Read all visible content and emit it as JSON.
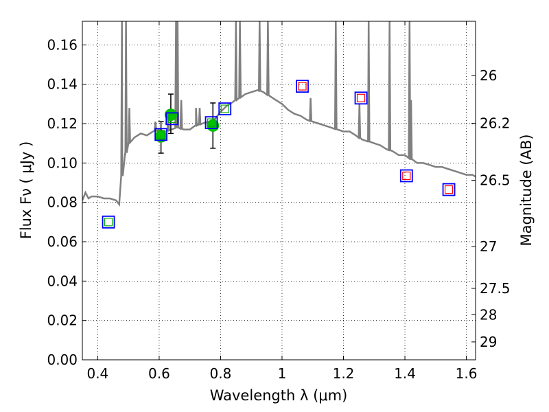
{
  "chart_data": {
    "type": "scatter",
    "xlabel": "Wavelength  λ (μm)",
    "ylabel": "Flux  Fν  ( μJy )",
    "y2label": "Magnitude (AB)",
    "xlim": [
      0.35,
      1.63
    ],
    "ylim": [
      0.0,
      0.172
    ],
    "x_ticks": [
      0.4,
      0.6,
      0.8,
      1.0,
      1.2,
      1.4,
      1.6
    ],
    "x_tick_labels": [
      "0.4",
      "0.6",
      "0.8",
      "1",
      "1.2",
      "1.4",
      "1.6"
    ],
    "y_ticks": [
      0.0,
      0.02,
      0.04,
      0.06,
      0.08,
      0.1,
      0.12,
      0.14,
      0.16
    ],
    "y_tick_labels": [
      "0.00",
      "0.02",
      "0.04",
      "0.06",
      "0.08",
      "0.10",
      "0.12",
      "0.14",
      "0.16"
    ],
    "y2_ticks": [
      {
        "mag": "26",
        "flux": 0.1445
      },
      {
        "mag": "26.2",
        "flux": 0.1202
      },
      {
        "mag": "26.5",
        "flux": 0.0912
      },
      {
        "mag": "27",
        "flux": 0.0575
      },
      {
        "mag": "27.5",
        "flux": 0.0363
      },
      {
        "mag": "28",
        "flux": 0.0229
      },
      {
        "mag": "29",
        "flux": 0.0091
      }
    ],
    "grid": true,
    "colors": {
      "sed": "#808080",
      "observed": "#00c000",
      "errorbar": "#000000",
      "model_outer": "#0000ff",
      "model_inner_green": "#00aa00",
      "model_inner_red": "#ff0000"
    },
    "sed_spectrum": {
      "x": [
        0.35,
        0.36,
        0.37,
        0.38,
        0.4,
        0.42,
        0.44,
        0.46,
        0.47,
        0.48,
        0.49,
        0.5,
        0.52,
        0.54,
        0.56,
        0.58,
        0.6,
        0.62,
        0.64,
        0.66,
        0.68,
        0.7,
        0.72,
        0.74,
        0.76,
        0.78,
        0.8,
        0.82,
        0.84,
        0.86,
        0.88,
        0.9,
        0.92,
        0.94,
        0.96,
        0.98,
        1.0,
        1.02,
        1.04,
        1.06,
        1.08,
        1.1,
        1.12,
        1.14,
        1.16,
        1.18,
        1.2,
        1.22,
        1.24,
        1.26,
        1.28,
        1.3,
        1.32,
        1.34,
        1.36,
        1.38,
        1.4,
        1.42,
        1.44,
        1.46,
        1.48,
        1.5,
        1.52,
        1.54,
        1.56,
        1.58,
        1.6,
        1.62,
        1.63
      ],
      "y": [
        0.081,
        0.085,
        0.082,
        0.083,
        0.083,
        0.082,
        0.082,
        0.081,
        0.079,
        0.095,
        0.104,
        0.11,
        0.113,
        0.115,
        0.114,
        0.116,
        0.117,
        0.116,
        0.117,
        0.118,
        0.117,
        0.117,
        0.119,
        0.12,
        0.121,
        0.122,
        0.126,
        0.129,
        0.131,
        0.133,
        0.135,
        0.136,
        0.137,
        0.136,
        0.134,
        0.132,
        0.13,
        0.127,
        0.125,
        0.124,
        0.122,
        0.121,
        0.12,
        0.119,
        0.118,
        0.117,
        0.116,
        0.116,
        0.114,
        0.112,
        0.111,
        0.11,
        0.109,
        0.107,
        0.106,
        0.104,
        0.104,
        0.102,
        0.1,
        0.1,
        0.099,
        0.098,
        0.098,
        0.097,
        0.096,
        0.095,
        0.094,
        0.094,
        0.093
      ]
    },
    "sed_lines": [
      {
        "x": 0.479,
        "peak": 0.172
      },
      {
        "x": 0.492,
        "peak": 0.172
      },
      {
        "x": 0.503,
        "peak": 0.128
      },
      {
        "x": 0.588,
        "peak": 0.121
      },
      {
        "x": 0.63,
        "peak": 0.127
      },
      {
        "x": 0.655,
        "peak": 0.172
      },
      {
        "x": 0.66,
        "peak": 0.172
      },
      {
        "x": 0.672,
        "peak": 0.132
      },
      {
        "x": 0.72,
        "peak": 0.128
      },
      {
        "x": 0.732,
        "peak": 0.128
      },
      {
        "x": 0.85,
        "peak": 0.172
      },
      {
        "x": 0.863,
        "peak": 0.172
      },
      {
        "x": 0.927,
        "peak": 0.172
      },
      {
        "x": 0.954,
        "peak": 0.172
      },
      {
        "x": 1.093,
        "peak": 0.133
      },
      {
        "x": 1.175,
        "peak": 0.172
      },
      {
        "x": 1.252,
        "peak": 0.13
      },
      {
        "x": 1.282,
        "peak": 0.172
      },
      {
        "x": 1.35,
        "peak": 0.172
      },
      {
        "x": 1.415,
        "peak": 0.172
      },
      {
        "x": 1.42,
        "peak": 0.132
      }
    ],
    "observed_points": [
      {
        "x": 0.606,
        "y": 0.1135,
        "err_low": 0.0085,
        "err_high": 0.0075
      },
      {
        "x": 0.638,
        "y": 0.1245,
        "err_low": 0.0095,
        "err_high": 0.0105
      },
      {
        "x": 0.775,
        "y": 0.119,
        "err_low": 0.0115,
        "err_high": 0.0115
      }
    ],
    "model_points": [
      {
        "x": 0.435,
        "y": 0.07,
        "inner": "green"
      },
      {
        "x": 0.606,
        "y": 0.1145,
        "inner": "green"
      },
      {
        "x": 0.642,
        "y": 0.1225,
        "inner": "green"
      },
      {
        "x": 0.77,
        "y": 0.1205,
        "inner": "green"
      },
      {
        "x": 0.814,
        "y": 0.1275,
        "inner": "green"
      },
      {
        "x": 1.066,
        "y": 0.139,
        "inner": "red"
      },
      {
        "x": 1.257,
        "y": 0.133,
        "inner": "red"
      },
      {
        "x": 1.405,
        "y": 0.0935,
        "inner": "red"
      },
      {
        "x": 1.543,
        "y": 0.0865,
        "inner": "red"
      }
    ]
  }
}
